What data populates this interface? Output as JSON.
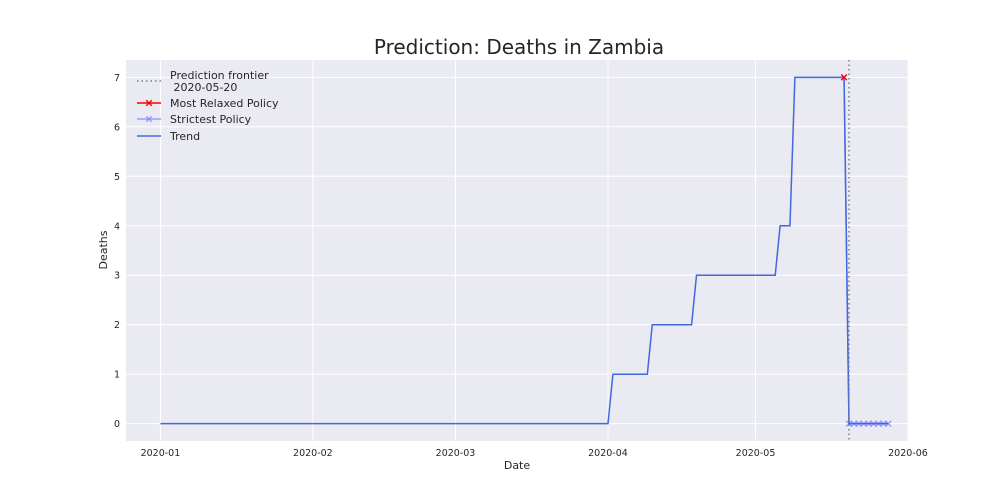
{
  "chart_data": {
    "type": "line",
    "title": "Prediction: Deaths in Zambia",
    "xlabel": "Date",
    "ylabel": "Deaths",
    "x_type": "date",
    "xlim": [
      "2019-12-25",
      "2020-06-01"
    ],
    "ylim": [
      -0.35,
      7.35
    ],
    "x_ticks": [
      "2020-01-01",
      "2020-02-01",
      "2020-03-01",
      "2020-04-01",
      "2020-05-01",
      "2020-06-01"
    ],
    "x_tick_labels": [
      "2020-01",
      "2020-02",
      "2020-03",
      "2020-04",
      "2020-05",
      "2020-06"
    ],
    "y_ticks": [
      0,
      1,
      2,
      3,
      4,
      5,
      6,
      7
    ],
    "grid": true,
    "legend_position": "top-left",
    "prediction_frontier": {
      "date": "2020-05-20",
      "label": "Prediction frontier\n 2020-05-20",
      "color": "#7f7f7f"
    },
    "series": [
      {
        "name": "Trend",
        "color": "#4169e1",
        "style": "step-line",
        "points": [
          [
            "2020-01-01",
            0
          ],
          [
            "2020-04-01",
            0
          ],
          [
            "2020-04-02",
            1
          ],
          [
            "2020-04-09",
            1
          ],
          [
            "2020-04-10",
            2
          ],
          [
            "2020-04-18",
            2
          ],
          [
            "2020-04-19",
            3
          ],
          [
            "2020-05-05",
            3
          ],
          [
            "2020-05-06",
            4
          ],
          [
            "2020-05-08",
            4
          ],
          [
            "2020-05-09",
            7
          ],
          [
            "2020-05-19",
            7
          ],
          [
            "2020-05-20",
            0
          ],
          [
            "2020-05-28",
            0
          ]
        ]
      },
      {
        "name": "Most Relaxed Policy",
        "color": "#ff0000",
        "style": "line-x",
        "points": [
          [
            "2020-05-19",
            7
          ]
        ]
      },
      {
        "name": "Strictest Policy",
        "color": "#8080ff",
        "style": "line-x",
        "points": [
          [
            "2020-05-19",
            7
          ],
          [
            "2020-05-20",
            0
          ],
          [
            "2020-05-21",
            0
          ],
          [
            "2020-05-22",
            0
          ],
          [
            "2020-05-23",
            0
          ],
          [
            "2020-05-24",
            0
          ],
          [
            "2020-05-25",
            0
          ],
          [
            "2020-05-26",
            0
          ],
          [
            "2020-05-27",
            0
          ],
          [
            "2020-05-28",
            0
          ]
        ]
      }
    ]
  }
}
